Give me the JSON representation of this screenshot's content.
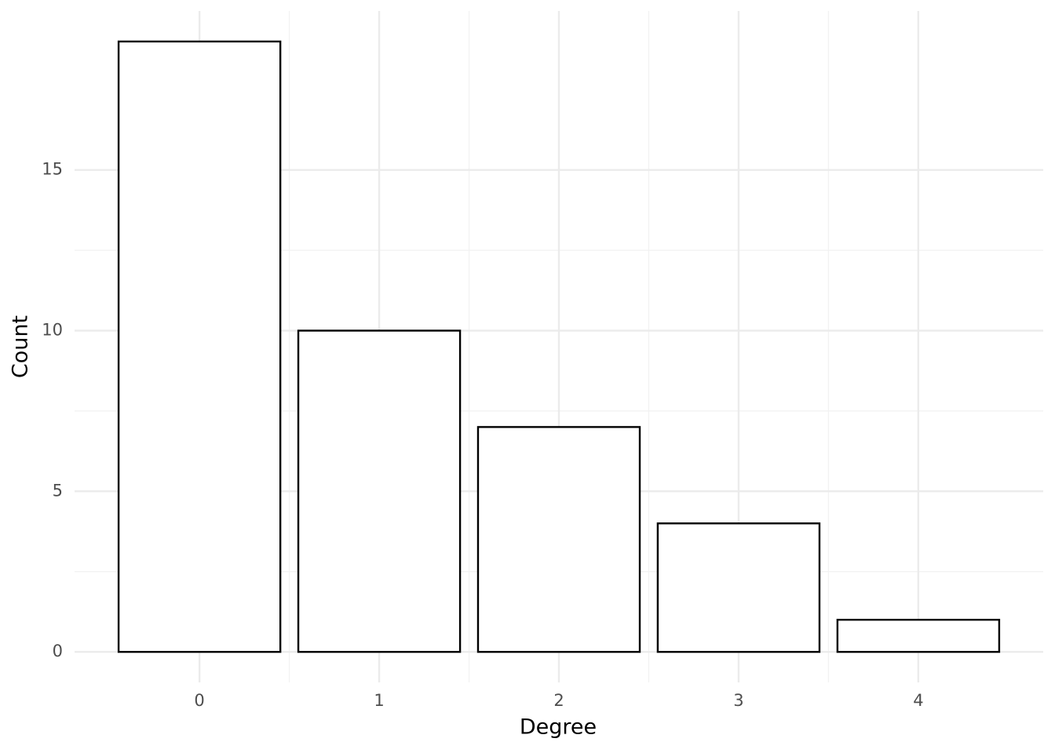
{
  "chart_data": {
    "type": "bar",
    "x_label": "Degree",
    "y_label": "Count",
    "x": [
      0,
      1,
      2,
      3,
      4
    ],
    "values": [
      19,
      10,
      7,
      4,
      1
    ],
    "color": "#ffffff",
    "edge_color": "#000000",
    "xlim": [
      -0.695,
      4.695
    ],
    "xticks": [
      0,
      1,
      2,
      3,
      4
    ],
    "ylim": [
      -0.95,
      19.95
    ],
    "yticks": [
      0,
      5,
      10,
      15
    ],
    "grid": true
  }
}
